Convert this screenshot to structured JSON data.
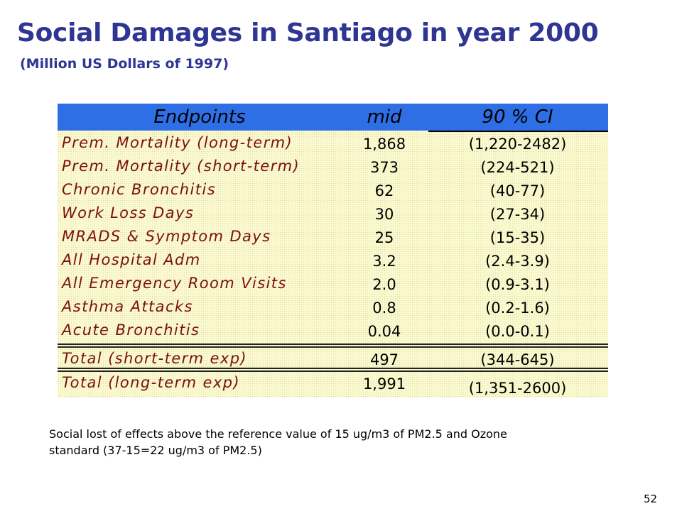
{
  "slide": {
    "title": "Social Damages in Santiago in year 2000",
    "subtitle": "(Million  US Dollars of 1997)",
    "note_line1": "Social lost of effects above the reference value of 15 ug/m3 of PM2.5 and Ozone",
    "note_line2": "standard (37-15=22 ug/m3 of PM2.5)",
    "page_number": "52"
  },
  "table": {
    "headers": [
      "Endpoints",
      "mid",
      "90 % CI"
    ],
    "rows": [
      {
        "endpoint": "Prem. Mortality (long-term)",
        "mid": "1,868",
        "ci": "(1,220-2482)"
      },
      {
        "endpoint": "Prem. Mortality (short-term)",
        "mid": "373",
        "ci": "(224-521)"
      },
      {
        "endpoint": "Chronic Bronchitis",
        "mid": "62",
        "ci": "(40-77)"
      },
      {
        "endpoint": "Work Loss Days",
        "mid": "30",
        "ci": "(27-34)"
      },
      {
        "endpoint": "MRADS & Symptom Days",
        "mid": "25",
        "ci": "(15-35)"
      },
      {
        "endpoint": "All Hospital Adm",
        "mid": "3.2",
        "ci": "(2.4-3.9)"
      },
      {
        "endpoint": "All Emergency Room Visits",
        "mid": "2.0",
        "ci": "(0.9-3.1)"
      },
      {
        "endpoint": "Asthma Attacks",
        "mid": "0.8",
        "ci": "(0.2-1.6)"
      },
      {
        "endpoint": "Acute Bronchitis",
        "mid": "0.04",
        "ci": "(0.0-0.1)"
      }
    ],
    "totals": [
      {
        "endpoint": "Total (short-term exp)",
        "mid": "497",
        "ci": "(344-645)"
      },
      {
        "endpoint": "Total (long-term exp)",
        "mid": "1,991",
        "ci": "(1,351-2600)"
      }
    ]
  },
  "colors": {
    "title": "#2e3592",
    "header_bg": "#2f6fe6",
    "table_bg": "#fdfbd0",
    "endpoint_text": "#7a1010"
  }
}
